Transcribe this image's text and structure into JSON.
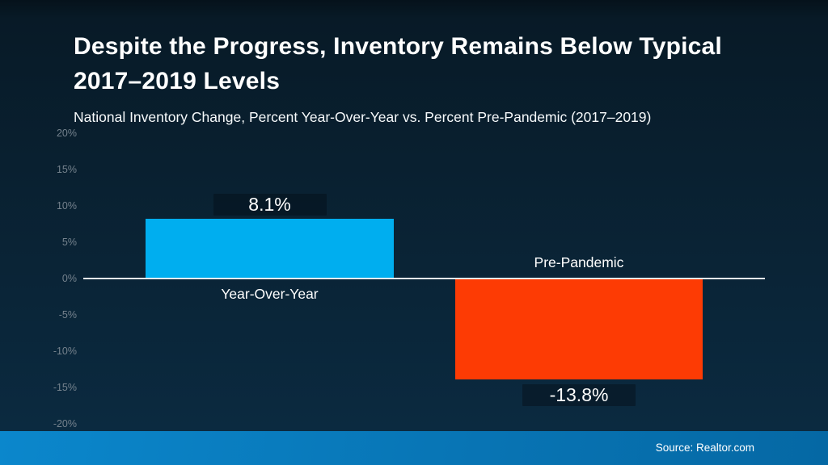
{
  "slide": {
    "title": "Despite the Progress, Inventory Remains Below Typical 2017–2019 Levels",
    "subtitle": "National Inventory Change, Percent Year-Over-Year vs. Percent Pre-Pandemic (2017–2019)",
    "source": "Source: Realtor.com"
  },
  "colors": {
    "background_top": "#05121B",
    "background_bottom": "#0B2A40",
    "zero_line": "#E6EBEF",
    "tick_text": "#75828D",
    "footer_gradient_left": "#0B87CC",
    "footer_gradient_right": "#0568A4",
    "title_text": "#FFFFFF"
  },
  "chart_data": {
    "type": "bar",
    "title": "Despite the Progress, Inventory Remains Below Typical 2017–2019 Levels",
    "subtitle": "National Inventory Change, Percent Year-Over-Year vs. Percent Pre-Pandemic (2017–2019)",
    "categories": [
      "Year-Over-Year",
      "Pre-Pandemic"
    ],
    "values": [
      8.1,
      -13.8
    ],
    "value_labels": [
      "8.1%",
      "-13.8%"
    ],
    "bar_colors": [
      "#00AEEF",
      "#FD3B04"
    ],
    "xlabel": "",
    "ylabel": "",
    "ylim": [
      -20,
      20
    ],
    "yticks": [
      {
        "value": 20,
        "label": "20%"
      },
      {
        "value": 15,
        "label": "15%"
      },
      {
        "value": 10,
        "label": "10%"
      },
      {
        "value": 5,
        "label": "5%"
      },
      {
        "value": 0,
        "label": "0%"
      },
      {
        "value": -5,
        "label": "-5%"
      },
      {
        "value": -10,
        "label": "-10%"
      },
      {
        "value": -15,
        "label": "-15%"
      },
      {
        "value": -20,
        "label": "-20%"
      }
    ],
    "grid": false,
    "legend": false,
    "annotations": [
      "Source: Realtor.com"
    ]
  }
}
